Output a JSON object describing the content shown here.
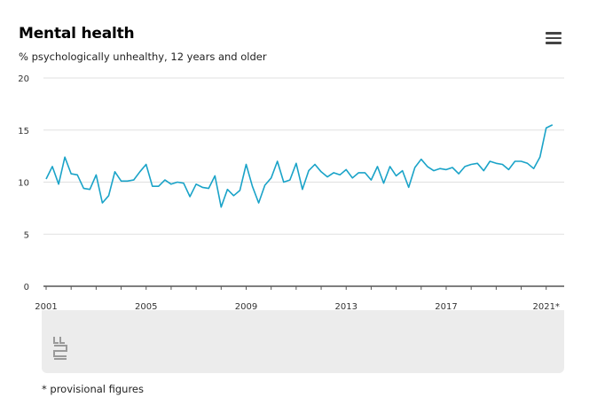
{
  "header": {
    "title": "Mental health",
    "subtitle": "% psychologically unhealthy, 12 years and older"
  },
  "footnote": "* provisional figures",
  "menu_icon": "hamburger-menu-icon",
  "logo_icon": "cbs-logo-icon",
  "colors": {
    "line": "#1aa3c8",
    "grid": "#e0e0e0",
    "axis": "#555555",
    "panel": "#ececec"
  },
  "chart_data": {
    "type": "line",
    "title": "Mental health",
    "subtitle": "% psychologically unhealthy, 12 years and older",
    "xlabel": "",
    "ylabel": "",
    "ylim": [
      0,
      20
    ],
    "yticks": [
      0,
      5,
      10,
      15,
      20
    ],
    "xlim": [
      2001,
      2021.4
    ],
    "x_tick_values": [
      2001,
      2005,
      2009,
      2013,
      2017,
      2021
    ],
    "x_tick_labels": [
      "2001",
      "2005",
      "2009",
      "2013",
      "2017",
      "2021*"
    ],
    "grid": true,
    "legend": "none",
    "series": [
      {
        "values": [
          [
            2001.0,
            10.3
          ],
          [
            2001.25,
            11.5
          ],
          [
            2001.5,
            9.8
          ],
          [
            2001.75,
            12.4
          ],
          [
            2002.0,
            10.8
          ],
          [
            2002.25,
            10.7
          ],
          [
            2002.5,
            9.4
          ],
          [
            2002.75,
            9.3
          ],
          [
            2003.0,
            10.7
          ],
          [
            2003.25,
            8.0
          ],
          [
            2003.5,
            8.7
          ],
          [
            2003.75,
            11.0
          ],
          [
            2004.0,
            10.1
          ],
          [
            2004.25,
            10.1
          ],
          [
            2004.5,
            10.2
          ],
          [
            2004.75,
            11.0
          ],
          [
            2005.0,
            11.7
          ],
          [
            2005.25,
            9.6
          ],
          [
            2005.5,
            9.6
          ],
          [
            2005.75,
            10.2
          ],
          [
            2006.0,
            9.8
          ],
          [
            2006.25,
            10.0
          ],
          [
            2006.5,
            9.9
          ],
          [
            2006.75,
            8.6
          ],
          [
            2007.0,
            9.8
          ],
          [
            2007.25,
            9.5
          ],
          [
            2007.5,
            9.4
          ],
          [
            2007.75,
            10.6
          ],
          [
            2008.0,
            7.6
          ],
          [
            2008.25,
            9.3
          ],
          [
            2008.5,
            8.7
          ],
          [
            2008.75,
            9.2
          ],
          [
            2009.0,
            11.7
          ],
          [
            2009.25,
            9.6
          ],
          [
            2009.5,
            8.0
          ],
          [
            2009.75,
            9.7
          ],
          [
            2010.0,
            10.4
          ],
          [
            2010.25,
            12.0
          ],
          [
            2010.5,
            10.0
          ],
          [
            2010.75,
            10.2
          ],
          [
            2011.0,
            11.8
          ],
          [
            2011.25,
            9.3
          ],
          [
            2011.5,
            11.1
          ],
          [
            2011.75,
            11.7
          ],
          [
            2012.0,
            11.0
          ],
          [
            2012.25,
            10.5
          ],
          [
            2012.5,
            10.9
          ],
          [
            2012.75,
            10.7
          ],
          [
            2013.0,
            11.2
          ],
          [
            2013.25,
            10.4
          ],
          [
            2013.5,
            10.9
          ],
          [
            2013.75,
            10.9
          ],
          [
            2014.0,
            10.2
          ],
          [
            2014.25,
            11.5
          ],
          [
            2014.5,
            9.9
          ],
          [
            2014.75,
            11.5
          ],
          [
            2015.0,
            10.6
          ],
          [
            2015.25,
            11.1
          ],
          [
            2015.5,
            9.5
          ],
          [
            2015.75,
            11.4
          ],
          [
            2016.0,
            12.2
          ],
          [
            2016.25,
            11.5
          ],
          [
            2016.5,
            11.1
          ],
          [
            2016.75,
            11.3
          ],
          [
            2017.0,
            11.2
          ],
          [
            2017.25,
            11.4
          ],
          [
            2017.5,
            10.8
          ],
          [
            2017.75,
            11.5
          ],
          [
            2018.0,
            11.7
          ],
          [
            2018.25,
            11.8
          ],
          [
            2018.5,
            11.1
          ],
          [
            2018.75,
            12.0
          ],
          [
            2019.0,
            11.8
          ],
          [
            2019.25,
            11.7
          ],
          [
            2019.5,
            11.2
          ],
          [
            2019.75,
            12.0
          ],
          [
            2020.0,
            12.0
          ],
          [
            2020.25,
            11.8
          ],
          [
            2020.5,
            11.3
          ],
          [
            2020.75,
            12.4
          ],
          [
            2021.0,
            15.2
          ],
          [
            2021.25,
            15.5
          ]
        ]
      }
    ]
  }
}
